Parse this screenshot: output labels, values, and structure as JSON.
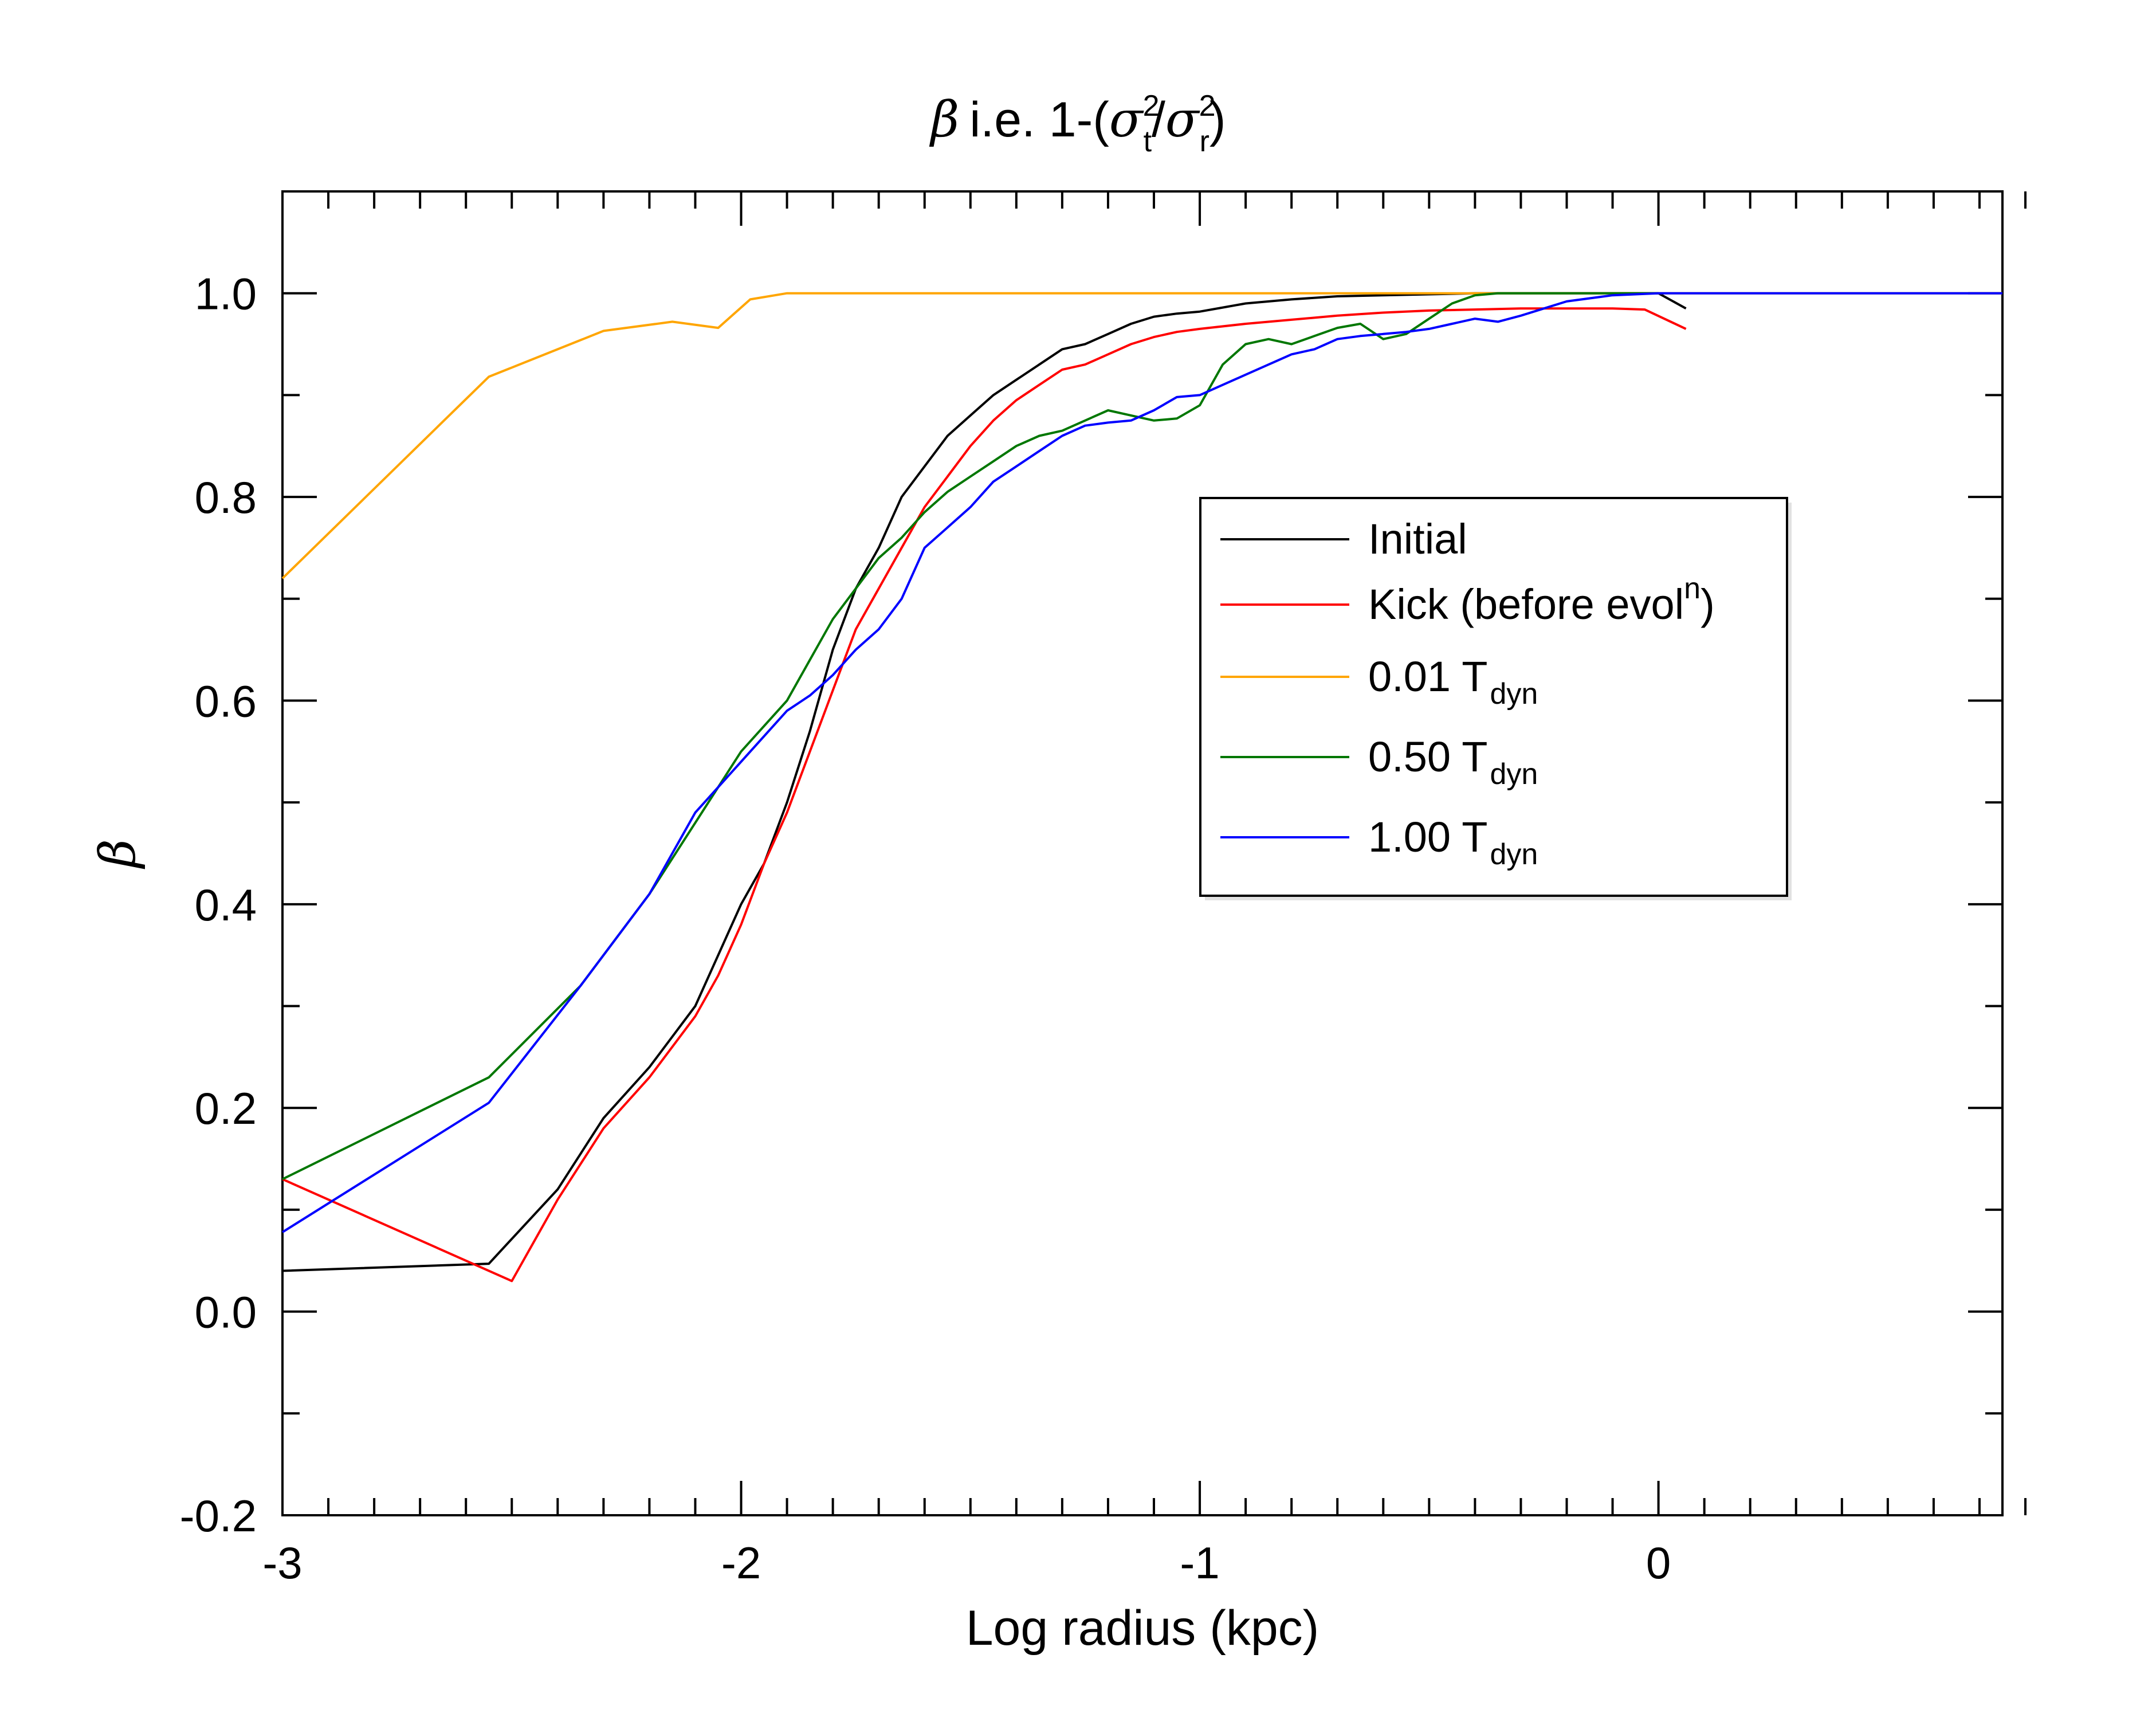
{
  "chart_data": {
    "type": "line",
    "title": {
      "beta_symbol": "β",
      "main": "i.e. 1-(",
      "sigma_t": "σ",
      "sigma_t_sup": "2",
      "sigma_t_sub": "t",
      "slash": "/",
      "sigma_r": "σ",
      "sigma_r_sup": "2",
      "sigma_r_sub": "r",
      "close": ")"
    },
    "xlabel": "Log radius (kpc)",
    "ylabel": "β",
    "xlim": [
      -3,
      0.75
    ],
    "ylim": [
      -0.2,
      1.1
    ],
    "xticks": [
      -3,
      -2,
      -1,
      0
    ],
    "xtick_labels": [
      "-3",
      "-2",
      "-1",
      "0"
    ],
    "yticks": [
      -0.2,
      0.0,
      0.2,
      0.4,
      0.6,
      0.8,
      1.0
    ],
    "ytick_labels": [
      "-0.2",
      "0.0",
      "0.2",
      "0.4",
      "0.6",
      "0.8",
      "1.0"
    ],
    "legend_position": "right-center",
    "series": [
      {
        "name": "Initial",
        "label": "Initial",
        "label_sub": "",
        "label_sup": "",
        "label_after": "",
        "color": "#000000",
        "x": [
          -3.0,
          -2.55,
          -2.4,
          -2.3,
          -2.2,
          -2.15,
          -2.1,
          -2.05,
          -2.0,
          -1.95,
          -1.9,
          -1.85,
          -1.8,
          -1.75,
          -1.7,
          -1.65,
          -1.6,
          -1.55,
          -1.5,
          -1.45,
          -1.4,
          -1.35,
          -1.3,
          -1.25,
          -1.2,
          -1.15,
          -1.1,
          -1.05,
          -1.0,
          -0.95,
          -0.9,
          -0.8,
          -0.7,
          -0.6,
          -0.5,
          -0.4,
          -0.3,
          -0.2,
          -0.1,
          0.0,
          0.06
        ],
        "y": [
          0.04,
          0.047,
          0.12,
          0.19,
          0.24,
          0.27,
          0.3,
          0.35,
          0.4,
          0.44,
          0.5,
          0.57,
          0.65,
          0.71,
          0.75,
          0.8,
          0.83,
          0.86,
          0.88,
          0.9,
          0.915,
          0.93,
          0.945,
          0.95,
          0.96,
          0.97,
          0.977,
          0.98,
          0.982,
          0.986,
          0.99,
          0.994,
          0.997,
          0.998,
          0.999,
          1.0,
          1.0,
          1.0,
          1.0,
          1.0,
          0.985
        ]
      },
      {
        "name": "Kick (before evol^n)",
        "label": "Kick (before evol",
        "label_sub": "",
        "label_sup": "n",
        "label_after": ")",
        "color": "#ff0000",
        "x": [
          -3.0,
          -2.5,
          -2.4,
          -2.3,
          -2.2,
          -2.15,
          -2.1,
          -2.05,
          -2.0,
          -1.95,
          -1.9,
          -1.85,
          -1.8,
          -1.75,
          -1.7,
          -1.65,
          -1.6,
          -1.55,
          -1.5,
          -1.45,
          -1.4,
          -1.35,
          -1.3,
          -1.25,
          -1.2,
          -1.15,
          -1.1,
          -1.05,
          -1.0,
          -0.9,
          -0.8,
          -0.7,
          -0.6,
          -0.5,
          -0.4,
          -0.3,
          -0.2,
          -0.1,
          -0.03,
          0.06
        ],
        "y": [
          0.13,
          0.03,
          0.11,
          0.18,
          0.23,
          0.26,
          0.29,
          0.33,
          0.38,
          0.44,
          0.49,
          0.55,
          0.61,
          0.67,
          0.71,
          0.75,
          0.79,
          0.82,
          0.85,
          0.875,
          0.895,
          0.91,
          0.925,
          0.93,
          0.94,
          0.95,
          0.957,
          0.962,
          0.965,
          0.97,
          0.974,
          0.978,
          0.981,
          0.983,
          0.984,
          0.985,
          0.985,
          0.985,
          0.984,
          0.965
        ]
      },
      {
        "name": "0.01 Tdyn",
        "label": "0.01 T",
        "label_sub": "dyn",
        "label_sup": "",
        "label_after": "",
        "color": "#ffa500",
        "x": [
          -3.0,
          -2.55,
          -2.3,
          -2.15,
          -2.05,
          -1.98,
          -1.9,
          -1.8,
          -1.5,
          -1.0,
          -0.5,
          0.0,
          0.5,
          0.75
        ],
        "y": [
          0.72,
          0.918,
          0.963,
          0.972,
          0.966,
          0.994,
          1.0,
          1.0,
          1.0,
          1.0,
          1.0,
          1.0,
          1.0,
          1.0
        ]
      },
      {
        "name": "0.50 Tdyn",
        "label": "0.50 T",
        "label_sub": "dyn",
        "label_sup": "",
        "label_after": "",
        "color": "#007700",
        "x": [
          -3.0,
          -2.55,
          -2.35,
          -2.2,
          -2.1,
          -2.0,
          -1.9,
          -1.85,
          -1.8,
          -1.75,
          -1.7,
          -1.65,
          -1.6,
          -1.55,
          -1.5,
          -1.45,
          -1.4,
          -1.35,
          -1.3,
          -1.25,
          -1.2,
          -1.15,
          -1.1,
          -1.05,
          -1.0,
          -0.95,
          -0.9,
          -0.85,
          -0.8,
          -0.75,
          -0.7,
          -0.65,
          -0.6,
          -0.55,
          -0.5,
          -0.45,
          -0.4,
          -0.35,
          -0.3,
          -0.2,
          -0.1,
          0.0
        ],
        "y": [
          0.13,
          0.23,
          0.32,
          0.41,
          0.48,
          0.55,
          0.6,
          0.64,
          0.68,
          0.71,
          0.74,
          0.76,
          0.785,
          0.805,
          0.82,
          0.835,
          0.85,
          0.86,
          0.865,
          0.875,
          0.885,
          0.88,
          0.875,
          0.877,
          0.89,
          0.93,
          0.95,
          0.955,
          0.95,
          0.958,
          0.966,
          0.97,
          0.955,
          0.96,
          0.975,
          0.99,
          0.998,
          1.0,
          1.0,
          1.0,
          1.0,
          1.0
        ]
      },
      {
        "name": "1.00 Tdyn",
        "label": "1.00 T",
        "label_sub": "dyn",
        "label_sup": "",
        "label_after": "",
        "color": "#0000ff",
        "x": [
          -3.0,
          -2.55,
          -2.35,
          -2.2,
          -2.1,
          -2.0,
          -1.9,
          -1.85,
          -1.8,
          -1.75,
          -1.7,
          -1.65,
          -1.6,
          -1.55,
          -1.5,
          -1.45,
          -1.4,
          -1.35,
          -1.3,
          -1.25,
          -1.2,
          -1.15,
          -1.1,
          -1.05,
          -1.0,
          -0.95,
          -0.9,
          -0.85,
          -0.8,
          -0.75,
          -0.7,
          -0.65,
          -0.6,
          -0.55,
          -0.5,
          -0.45,
          -0.4,
          -0.35,
          -0.3,
          -0.25,
          -0.2,
          -0.1,
          0.0,
          0.2,
          0.5,
          0.75
        ],
        "y": [
          0.078,
          0.205,
          0.32,
          0.41,
          0.49,
          0.54,
          0.59,
          0.605,
          0.625,
          0.65,
          0.67,
          0.7,
          0.75,
          0.77,
          0.79,
          0.815,
          0.83,
          0.845,
          0.86,
          0.87,
          0.873,
          0.875,
          0.885,
          0.898,
          0.9,
          0.91,
          0.92,
          0.93,
          0.94,
          0.945,
          0.955,
          0.958,
          0.96,
          0.962,
          0.965,
          0.97,
          0.975,
          0.972,
          0.978,
          0.985,
          0.992,
          0.998,
          1.0,
          1.0,
          1.0,
          1.0
        ]
      }
    ]
  }
}
